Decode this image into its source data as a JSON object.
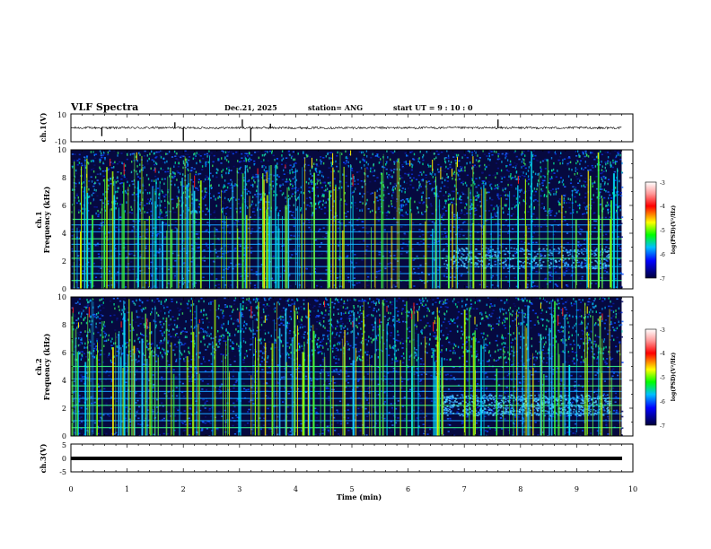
{
  "header": {
    "title": "VLF Spectra",
    "date": "Dec.21, 2025",
    "station": "station= ANG",
    "start": "start  UT =   9  : 10 : 0"
  },
  "chart_data": {
    "type": "heatmap",
    "title": "VLF Spectra",
    "xlabel": "Time  (min)",
    "xlim": [
      0,
      10
    ],
    "x_ticks": [
      "0",
      "1",
      "2",
      "3",
      "4",
      "5",
      "6",
      "7",
      "8",
      "9",
      "10"
    ],
    "panels": [
      {
        "name": "ch.1 waveform",
        "type": "line",
        "ylabel": "ch.1(V)",
        "ylim": [
          -10,
          10
        ],
        "y_ticks": [
          "10",
          "-10"
        ],
        "baseline": 0,
        "spikes": [
          {
            "t": 0.55,
            "v": -6
          },
          {
            "t": 1.85,
            "v": 4
          },
          {
            "t": 2.0,
            "v": -9
          },
          {
            "t": 3.05,
            "v": 6
          },
          {
            "t": 3.2,
            "v": -10
          },
          {
            "t": 3.55,
            "v": 3
          },
          {
            "t": 7.6,
            "v": 6
          }
        ]
      },
      {
        "name": "ch.1 spectrogram",
        "type": "heatmap",
        "ylabel": "ch.1\nFrequency  (kHz)",
        "ylim": [
          0,
          10
        ],
        "y_ticks": [
          "0",
          "2",
          "4",
          "6",
          "8",
          "10"
        ],
        "colorbar": {
          "label": "log(PSD)(V²/Hz)",
          "range": [
            -7,
            -3
          ],
          "ticks": [
            "-3",
            "-4",
            "-5",
            "-6",
            "-7"
          ],
          "colors": [
            "#ffffff",
            "#ff9999",
            "#ff0000",
            "#ffff00",
            "#00ff00",
            "#00bfff",
            "#0000ff",
            "#00003a"
          ]
        }
      },
      {
        "name": "ch.2 spectrogram",
        "type": "heatmap",
        "ylabel": "ch.2\nFrequency  (kHz)",
        "ylim": [
          0,
          10
        ],
        "y_ticks": [
          "0",
          "2",
          "4",
          "6",
          "8",
          "10"
        ],
        "colorbar": {
          "label": "log(PSD)(V²/Hz)",
          "range": [
            -7,
            -3
          ],
          "ticks": [
            "-3",
            "-4",
            "-5",
            "-6",
            "-7"
          ],
          "colors": [
            "#ffffff",
            "#ff9999",
            "#ff0000",
            "#ffff00",
            "#00ff00",
            "#00bfff",
            "#0000ff",
            "#00003a"
          ]
        }
      },
      {
        "name": "ch.3 waveform",
        "type": "line",
        "ylabel": "ch.3(V)",
        "ylim": [
          -5,
          5
        ],
        "y_ticks": [
          "5",
          "0",
          "-5"
        ],
        "baseline": 0
      }
    ],
    "recording_end_min": 9.8,
    "harmonic_lines_khz": [
      0.6,
      1.1,
      1.6,
      2.2,
      2.7,
      3.2,
      3.6,
      4.1,
      4.6,
      5.0
    ],
    "emission_band": {
      "t_start": 6.6,
      "t_end": 9.6,
      "f_low": 1.5,
      "f_high": 3.0
    }
  }
}
